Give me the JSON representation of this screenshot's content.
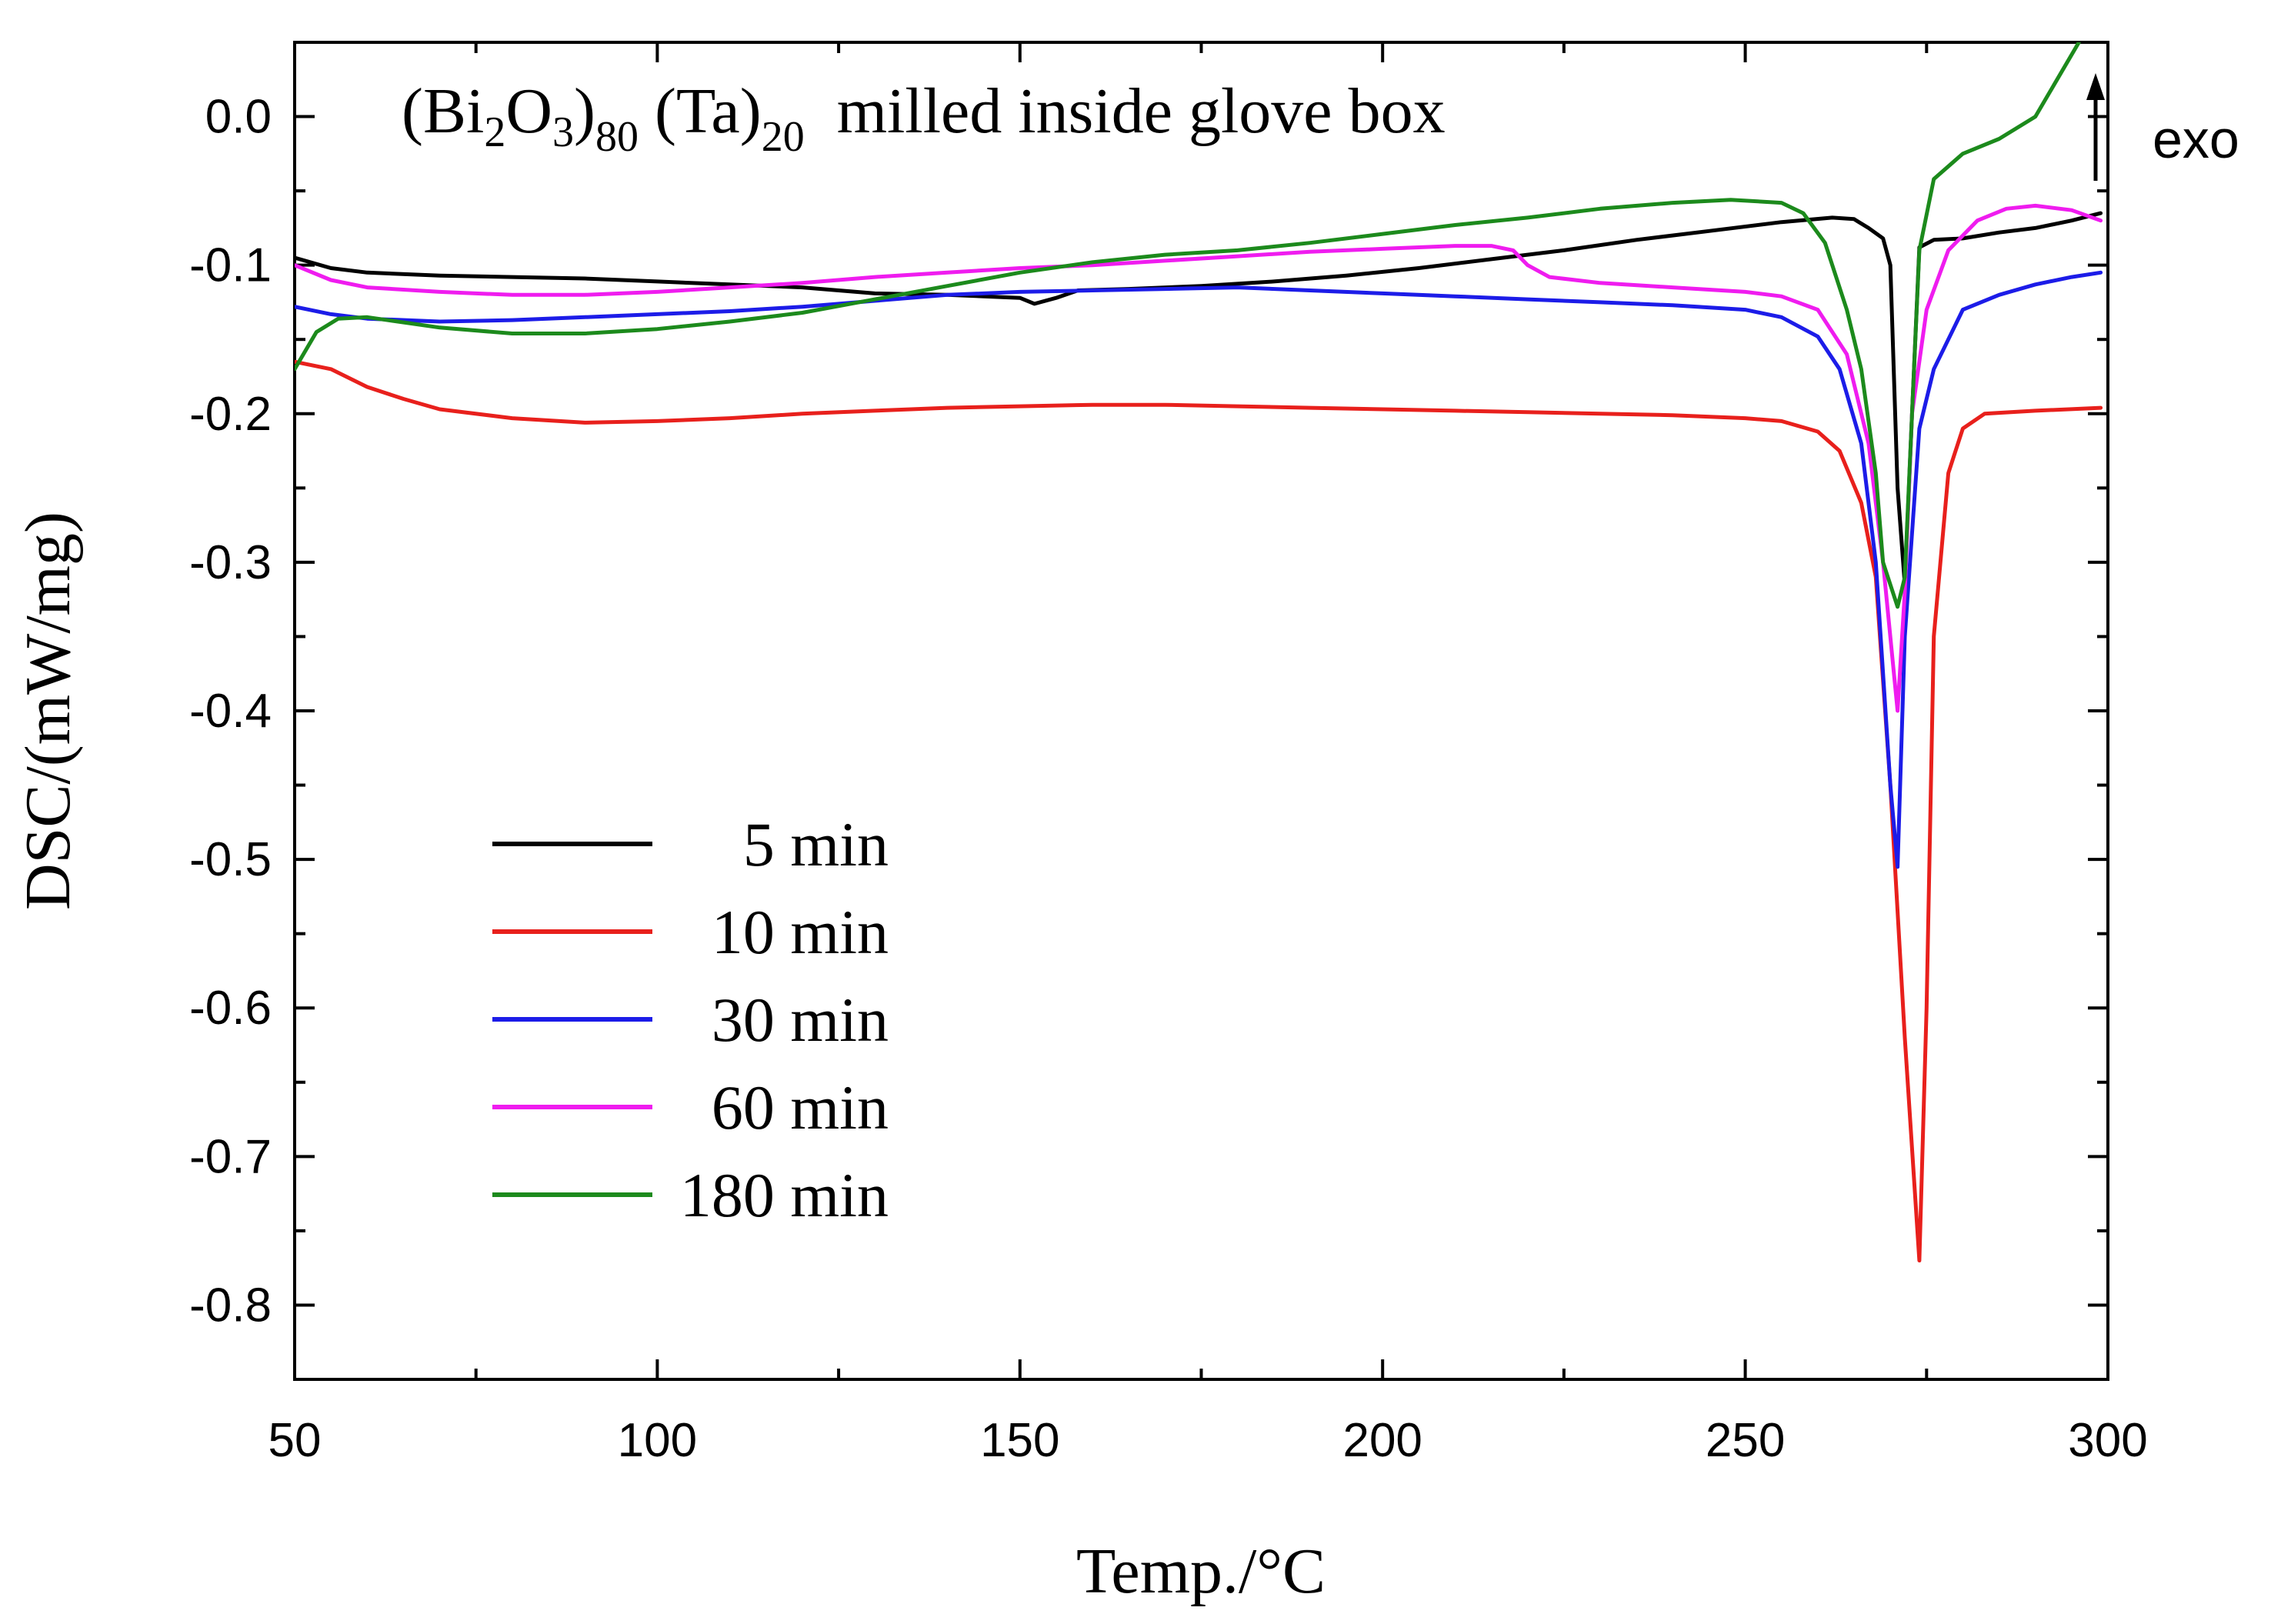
{
  "chart_data": {
    "type": "line",
    "title": "",
    "annotation": {
      "prefix": "(Bi",
      "sub1": "2",
      "mid": "O",
      "sub2": "3",
      "close": ")",
      "sub3": "80",
      "ta": " (Ta)",
      "sub4": "20",
      "suffix": "  milled inside glove box"
    },
    "exo_label": "exo",
    "xlabel": "Temp./°C",
    "ylabel": "DSC/(mW/mg)",
    "xlim": [
      50,
      300
    ],
    "ylim": [
      -0.85,
      0.05
    ],
    "xticks": [
      50,
      100,
      150,
      200,
      250,
      300
    ],
    "xtick_labels": [
      "50",
      "100",
      "150",
      "200",
      "250",
      "300"
    ],
    "yticks": [
      0.0,
      -0.1,
      -0.2,
      -0.3,
      -0.4,
      -0.5,
      -0.6,
      -0.7,
      -0.8
    ],
    "ytick_labels": [
      "0.0",
      "-0.1",
      "-0.2",
      "-0.3",
      "-0.4",
      "-0.5",
      "-0.6",
      "-0.7",
      "-0.8"
    ],
    "legend_position": "center-left",
    "series": [
      {
        "name": "  5 min",
        "color": "#000000",
        "points": [
          [
            50,
            -0.095
          ],
          [
            55,
            -0.102
          ],
          [
            60,
            -0.105
          ],
          [
            70,
            -0.107
          ],
          [
            80,
            -0.108
          ],
          [
            90,
            -0.109
          ],
          [
            100,
            -0.111
          ],
          [
            110,
            -0.113
          ],
          [
            120,
            -0.115
          ],
          [
            130,
            -0.119
          ],
          [
            140,
            -0.12
          ],
          [
            145,
            -0.121
          ],
          [
            150,
            -0.122
          ],
          [
            152,
            -0.126
          ],
          [
            155,
            -0.122
          ],
          [
            158,
            -0.117
          ],
          [
            165,
            -0.116
          ],
          [
            175,
            -0.114
          ],
          [
            185,
            -0.111
          ],
          [
            195,
            -0.107
          ],
          [
            205,
            -0.102
          ],
          [
            215,
            -0.096
          ],
          [
            225,
            -0.09
          ],
          [
            235,
            -0.083
          ],
          [
            245,
            -0.077
          ],
          [
            255,
            -0.071
          ],
          [
            262,
            -0.068
          ],
          [
            265,
            -0.069
          ],
          [
            267,
            -0.075
          ],
          [
            269,
            -0.082
          ],
          [
            270,
            -0.1
          ],
          [
            271,
            -0.25
          ],
          [
            272,
            -0.315
          ],
          [
            273,
            -0.2
          ],
          [
            274,
            -0.088
          ],
          [
            276,
            -0.083
          ],
          [
            280,
            -0.082
          ],
          [
            285,
            -0.078
          ],
          [
            290,
            -0.075
          ],
          [
            295,
            -0.07
          ],
          [
            299,
            -0.065
          ]
        ]
      },
      {
        "name": "10 min",
        "color": "#e8201c",
        "points": [
          [
            50,
            -0.165
          ],
          [
            55,
            -0.17
          ],
          [
            60,
            -0.182
          ],
          [
            65,
            -0.19
          ],
          [
            70,
            -0.197
          ],
          [
            80,
            -0.203
          ],
          [
            90,
            -0.206
          ],
          [
            100,
            -0.205
          ],
          [
            110,
            -0.203
          ],
          [
            120,
            -0.2
          ],
          [
            130,
            -0.198
          ],
          [
            140,
            -0.196
          ],
          [
            150,
            -0.195
          ],
          [
            160,
            -0.194
          ],
          [
            170,
            -0.194
          ],
          [
            180,
            -0.195
          ],
          [
            190,
            -0.196
          ],
          [
            200,
            -0.197
          ],
          [
            210,
            -0.198
          ],
          [
            220,
            -0.199
          ],
          [
            230,
            -0.2
          ],
          [
            240,
            -0.201
          ],
          [
            250,
            -0.203
          ],
          [
            255,
            -0.205
          ],
          [
            260,
            -0.212
          ],
          [
            263,
            -0.225
          ],
          [
            266,
            -0.26
          ],
          [
            268,
            -0.31
          ],
          [
            270,
            -0.45
          ],
          [
            272,
            -0.62
          ],
          [
            274,
            -0.77
          ],
          [
            275,
            -0.6
          ],
          [
            276,
            -0.35
          ],
          [
            278,
            -0.24
          ],
          [
            280,
            -0.21
          ],
          [
            283,
            -0.2
          ],
          [
            290,
            -0.198
          ],
          [
            299,
            -0.196
          ]
        ]
      },
      {
        "name": "30 min",
        "color": "#1c1ce8",
        "points": [
          [
            50,
            -0.128
          ],
          [
            55,
            -0.133
          ],
          [
            60,
            -0.136
          ],
          [
            70,
            -0.138
          ],
          [
            80,
            -0.137
          ],
          [
            90,
            -0.135
          ],
          [
            100,
            -0.133
          ],
          [
            110,
            -0.131
          ],
          [
            120,
            -0.128
          ],
          [
            130,
            -0.124
          ],
          [
            140,
            -0.12
          ],
          [
            150,
            -0.118
          ],
          [
            160,
            -0.117
          ],
          [
            170,
            -0.116
          ],
          [
            180,
            -0.115
          ],
          [
            190,
            -0.117
          ],
          [
            200,
            -0.119
          ],
          [
            210,
            -0.121
          ],
          [
            220,
            -0.123
          ],
          [
            230,
            -0.125
          ],
          [
            240,
            -0.127
          ],
          [
            250,
            -0.13
          ],
          [
            255,
            -0.135
          ],
          [
            260,
            -0.148
          ],
          [
            263,
            -0.17
          ],
          [
            266,
            -0.22
          ],
          [
            268,
            -0.3
          ],
          [
            270,
            -0.45
          ],
          [
            271,
            -0.505
          ],
          [
            272,
            -0.35
          ],
          [
            274,
            -0.21
          ],
          [
            276,
            -0.17
          ],
          [
            280,
            -0.13
          ],
          [
            285,
            -0.12
          ],
          [
            290,
            -0.113
          ],
          [
            295,
            -0.108
          ],
          [
            299,
            -0.105
          ]
        ]
      },
      {
        "name": "60 min",
        "color": "#ef1cef",
        "points": [
          [
            50,
            -0.1
          ],
          [
            55,
            -0.11
          ],
          [
            60,
            -0.115
          ],
          [
            70,
            -0.118
          ],
          [
            80,
            -0.12
          ],
          [
            90,
            -0.12
          ],
          [
            100,
            -0.118
          ],
          [
            110,
            -0.115
          ],
          [
            120,
            -0.112
          ],
          [
            130,
            -0.108
          ],
          [
            140,
            -0.105
          ],
          [
            150,
            -0.102
          ],
          [
            160,
            -0.1
          ],
          [
            170,
            -0.097
          ],
          [
            180,
            -0.094
          ],
          [
            190,
            -0.091
          ],
          [
            200,
            -0.089
          ],
          [
            210,
            -0.087
          ],
          [
            215,
            -0.087
          ],
          [
            218,
            -0.09
          ],
          [
            220,
            -0.1
          ],
          [
            223,
            -0.108
          ],
          [
            230,
            -0.112
          ],
          [
            240,
            -0.115
          ],
          [
            250,
            -0.118
          ],
          [
            255,
            -0.121
          ],
          [
            260,
            -0.13
          ],
          [
            264,
            -0.16
          ],
          [
            267,
            -0.22
          ],
          [
            269,
            -0.3
          ],
          [
            271,
            -0.4
          ],
          [
            272,
            -0.32
          ],
          [
            273,
            -0.2
          ],
          [
            275,
            -0.13
          ],
          [
            278,
            -0.09
          ],
          [
            282,
            -0.07
          ],
          [
            286,
            -0.062
          ],
          [
            290,
            -0.06
          ],
          [
            295,
            -0.063
          ],
          [
            299,
            -0.07
          ]
        ]
      },
      {
        "name": "180 min",
        "color": "#1c8a1c",
        "points": [
          [
            50,
            -0.17
          ],
          [
            53,
            -0.145
          ],
          [
            56,
            -0.136
          ],
          [
            60,
            -0.135
          ],
          [
            70,
            -0.142
          ],
          [
            80,
            -0.146
          ],
          [
            90,
            -0.146
          ],
          [
            100,
            -0.143
          ],
          [
            110,
            -0.138
          ],
          [
            120,
            -0.132
          ],
          [
            130,
            -0.123
          ],
          [
            140,
            -0.114
          ],
          [
            150,
            -0.105
          ],
          [
            160,
            -0.098
          ],
          [
            170,
            -0.093
          ],
          [
            180,
            -0.09
          ],
          [
            190,
            -0.085
          ],
          [
            200,
            -0.079
          ],
          [
            210,
            -0.073
          ],
          [
            220,
            -0.068
          ],
          [
            230,
            -0.062
          ],
          [
            240,
            -0.058
          ],
          [
            248,
            -0.056
          ],
          [
            255,
            -0.058
          ],
          [
            258,
            -0.065
          ],
          [
            261,
            -0.085
          ],
          [
            264,
            -0.13
          ],
          [
            266,
            -0.17
          ],
          [
            268,
            -0.24
          ],
          [
            269,
            -0.3
          ],
          [
            271,
            -0.33
          ],
          [
            272,
            -0.31
          ],
          [
            273,
            -0.2
          ],
          [
            274,
            -0.09
          ],
          [
            276,
            -0.042
          ],
          [
            280,
            -0.025
          ],
          [
            285,
            -0.015
          ],
          [
            290,
            0.0
          ],
          [
            293,
            0.025
          ],
          [
            296,
            0.05
          ]
        ]
      }
    ]
  }
}
